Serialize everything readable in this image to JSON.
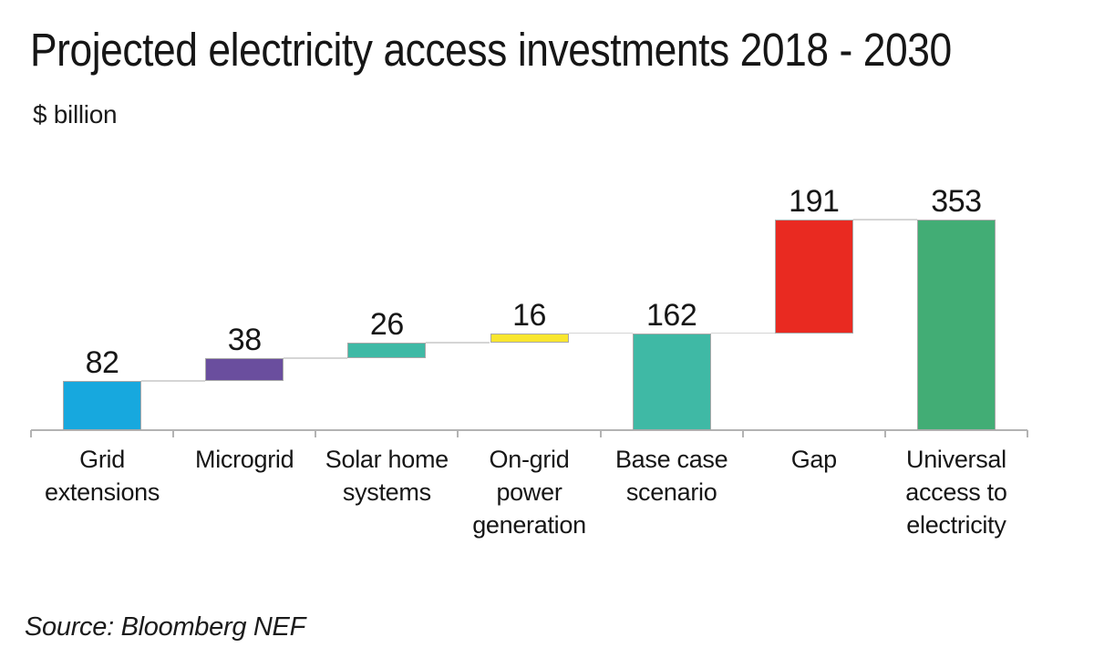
{
  "header": {
    "title": "Projected electricity access investments 2018 - 2030",
    "unit_label": "$ billion"
  },
  "source": {
    "text": "Source: Bloomberg NEF"
  },
  "chart_data": {
    "type": "bar",
    "subtype": "waterfall",
    "title": "Projected electricity access investments 2018 - 2030",
    "ylabel": "$ billion",
    "xlabel": "",
    "ylim": [
      0,
      353
    ],
    "grid": false,
    "legend": false,
    "categories": [
      "Grid extensions",
      "Microgrid",
      "Solar home systems",
      "On-grid power generation",
      "Base case scenario",
      "Gap",
      "Universal access to electricity"
    ],
    "bars": [
      {
        "label": "Grid extensions",
        "label_lines": [
          "Grid",
          "extensions"
        ],
        "value": 82,
        "start": 0,
        "end": 82,
        "color": "#17a8de"
      },
      {
        "label": "Microgrid",
        "label_lines": [
          "Microgrid"
        ],
        "value": 38,
        "start": 82,
        "end": 120,
        "color": "#6a4e9e"
      },
      {
        "label": "Solar home systems",
        "label_lines": [
          "Solar home",
          "systems"
        ],
        "value": 26,
        "start": 120,
        "end": 146,
        "color": "#3fb9a5"
      },
      {
        "label": "On-grid power generation",
        "label_lines": [
          "On-grid",
          "power",
          "generation"
        ],
        "value": 16,
        "start": 146,
        "end": 162,
        "color": "#f9e62f"
      },
      {
        "label": "Base case scenario",
        "label_lines": [
          "Base case",
          "scenario"
        ],
        "value": 162,
        "start": 0,
        "end": 162,
        "color": "#3fb9a5"
      },
      {
        "label": "Gap",
        "label_lines": [
          "Gap"
        ],
        "value": 191,
        "start": 162,
        "end": 353,
        "color": "#e92a21"
      },
      {
        "label": "Universal access to electricity",
        "label_lines": [
          "Universal",
          "access to",
          "electricity"
        ],
        "value": 353,
        "start": 0,
        "end": 353,
        "color": "#42ad75"
      }
    ],
    "colors": {
      "text": "#161616",
      "axis_line": "#b3b3b3",
      "connector_line": "#d5d5d5",
      "bar_border": "#a8a8a8",
      "background": "#ffffff"
    }
  }
}
